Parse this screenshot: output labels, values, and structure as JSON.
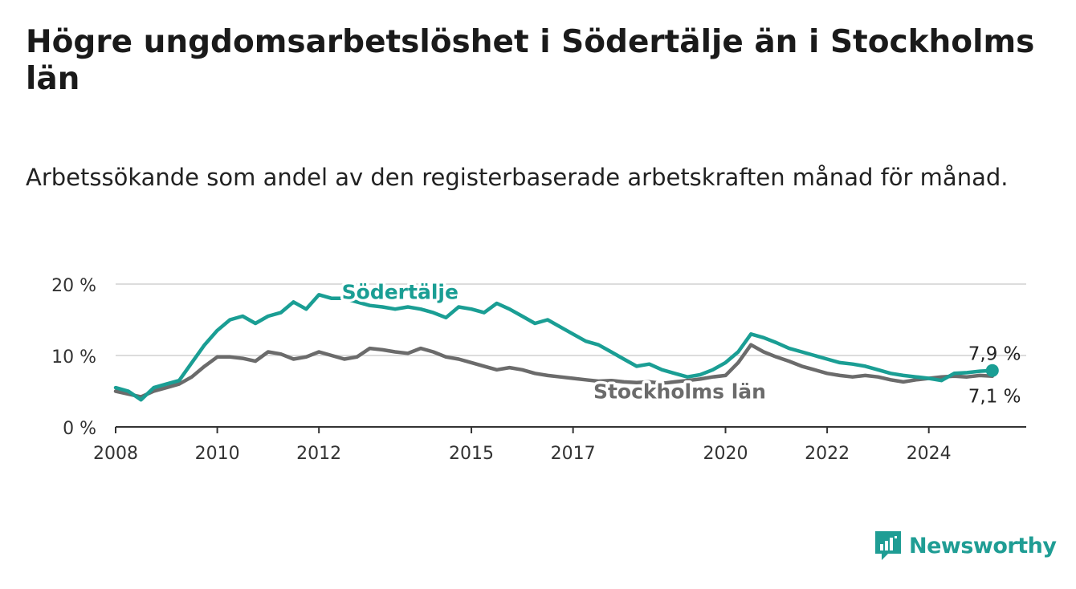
{
  "title": "Högre ungdomsarbetslöshet i Södertälje än i Stockholms län",
  "subtitle": "Arbetssökande som andel av den registerbaserade arbetskraften månad för månad.",
  "brand": {
    "name": "Newsworthy",
    "icon": "chart-bubble-icon",
    "color": "#1f9d94"
  },
  "chart_data": {
    "type": "line",
    "x_ticks": [
      "2008",
      "2010",
      "2012",
      "2015",
      "2017",
      "2020",
      "2022",
      "2024"
    ],
    "y_ticks": [
      "0 %",
      "10 %",
      "20 %"
    ],
    "ylim": [
      0,
      20
    ],
    "grid": true,
    "x_range": [
      "2008-01",
      "2025-12"
    ],
    "series": [
      {
        "name": "Södertälje",
        "color": "#1a9e94",
        "end_label": "7,9 %",
        "points": [
          [
            "2008-01",
            5.5
          ],
          [
            "2008-04",
            5.0
          ],
          [
            "2008-07",
            3.8
          ],
          [
            "2008-10",
            5.5
          ],
          [
            "2009-01",
            6.0
          ],
          [
            "2009-04",
            6.5
          ],
          [
            "2009-07",
            9.0
          ],
          [
            "2009-10",
            11.5
          ],
          [
            "2010-01",
            13.5
          ],
          [
            "2010-04",
            15.0
          ],
          [
            "2010-07",
            15.5
          ],
          [
            "2010-10",
            14.5
          ],
          [
            "2011-01",
            15.5
          ],
          [
            "2011-04",
            16.0
          ],
          [
            "2011-07",
            17.5
          ],
          [
            "2011-10",
            16.5
          ],
          [
            "2012-01",
            18.5
          ],
          [
            "2012-04",
            18.0
          ],
          [
            "2012-07",
            18.0
          ],
          [
            "2012-10",
            17.5
          ],
          [
            "2013-01",
            17.0
          ],
          [
            "2013-04",
            16.8
          ],
          [
            "2013-07",
            16.5
          ],
          [
            "2013-10",
            16.8
          ],
          [
            "2014-01",
            16.5
          ],
          [
            "2014-04",
            16.0
          ],
          [
            "2014-07",
            15.3
          ],
          [
            "2014-10",
            16.8
          ],
          [
            "2015-01",
            16.5
          ],
          [
            "2015-04",
            16.0
          ],
          [
            "2015-07",
            17.3
          ],
          [
            "2015-10",
            16.5
          ],
          [
            "2016-01",
            15.5
          ],
          [
            "2016-04",
            14.5
          ],
          [
            "2016-07",
            15.0
          ],
          [
            "2016-10",
            14.0
          ],
          [
            "2017-01",
            13.0
          ],
          [
            "2017-04",
            12.0
          ],
          [
            "2017-07",
            11.5
          ],
          [
            "2017-10",
            10.5
          ],
          [
            "2018-01",
            9.5
          ],
          [
            "2018-04",
            8.5
          ],
          [
            "2018-07",
            8.8
          ],
          [
            "2018-10",
            8.0
          ],
          [
            "2019-01",
            7.5
          ],
          [
            "2019-04",
            7.0
          ],
          [
            "2019-07",
            7.3
          ],
          [
            "2019-10",
            8.0
          ],
          [
            "2020-01",
            9.0
          ],
          [
            "2020-04",
            10.5
          ],
          [
            "2020-07",
            13.0
          ],
          [
            "2020-10",
            12.5
          ],
          [
            "2021-01",
            11.8
          ],
          [
            "2021-04",
            11.0
          ],
          [
            "2021-07",
            10.5
          ],
          [
            "2021-10",
            10.0
          ],
          [
            "2022-01",
            9.5
          ],
          [
            "2022-04",
            9.0
          ],
          [
            "2022-07",
            8.8
          ],
          [
            "2022-10",
            8.5
          ],
          [
            "2023-01",
            8.0
          ],
          [
            "2023-04",
            7.5
          ],
          [
            "2023-07",
            7.2
          ],
          [
            "2023-10",
            7.0
          ],
          [
            "2024-01",
            6.8
          ],
          [
            "2024-04",
            6.5
          ],
          [
            "2024-07",
            7.5
          ],
          [
            "2024-10",
            7.6
          ],
          [
            "2025-01",
            7.8
          ],
          [
            "2025-04",
            7.9
          ]
        ]
      },
      {
        "name": "Stockholms län",
        "color": "#6b6b6b",
        "end_label": "7,1 %",
        "points": [
          [
            "2008-01",
            5.0
          ],
          [
            "2008-04",
            4.6
          ],
          [
            "2008-07",
            4.2
          ],
          [
            "2008-10",
            5.0
          ],
          [
            "2009-01",
            5.5
          ],
          [
            "2009-04",
            6.0
          ],
          [
            "2009-07",
            7.0
          ],
          [
            "2009-10",
            8.5
          ],
          [
            "2010-01",
            9.8
          ],
          [
            "2010-04",
            9.8
          ],
          [
            "2010-07",
            9.6
          ],
          [
            "2010-10",
            9.2
          ],
          [
            "2011-01",
            10.5
          ],
          [
            "2011-04",
            10.2
          ],
          [
            "2011-07",
            9.5
          ],
          [
            "2011-10",
            9.8
          ],
          [
            "2012-01",
            10.5
          ],
          [
            "2012-04",
            10.0
          ],
          [
            "2012-07",
            9.5
          ],
          [
            "2012-10",
            9.8
          ],
          [
            "2013-01",
            11.0
          ],
          [
            "2013-04",
            10.8
          ],
          [
            "2013-07",
            10.5
          ],
          [
            "2013-10",
            10.3
          ],
          [
            "2014-01",
            11.0
          ],
          [
            "2014-04",
            10.5
          ],
          [
            "2014-07",
            9.8
          ],
          [
            "2014-10",
            9.5
          ],
          [
            "2015-01",
            9.0
          ],
          [
            "2015-04",
            8.5
          ],
          [
            "2015-07",
            8.0
          ],
          [
            "2015-10",
            8.3
          ],
          [
            "2016-01",
            8.0
          ],
          [
            "2016-04",
            7.5
          ],
          [
            "2016-07",
            7.2
          ],
          [
            "2016-10",
            7.0
          ],
          [
            "2017-01",
            6.8
          ],
          [
            "2017-04",
            6.6
          ],
          [
            "2017-07",
            6.4
          ],
          [
            "2017-10",
            6.5
          ],
          [
            "2018-01",
            6.3
          ],
          [
            "2018-04",
            6.2
          ],
          [
            "2018-07",
            6.3
          ],
          [
            "2018-10",
            6.1
          ],
          [
            "2019-01",
            6.3
          ],
          [
            "2019-04",
            6.5
          ],
          [
            "2019-07",
            6.7
          ],
          [
            "2019-10",
            7.0
          ],
          [
            "2020-01",
            7.2
          ],
          [
            "2020-04",
            9.0
          ],
          [
            "2020-07",
            11.5
          ],
          [
            "2020-10",
            10.5
          ],
          [
            "2021-01",
            9.8
          ],
          [
            "2021-04",
            9.2
          ],
          [
            "2021-07",
            8.5
          ],
          [
            "2021-10",
            8.0
          ],
          [
            "2022-01",
            7.5
          ],
          [
            "2022-04",
            7.2
          ],
          [
            "2022-07",
            7.0
          ],
          [
            "2022-10",
            7.2
          ],
          [
            "2023-01",
            7.0
          ],
          [
            "2023-04",
            6.6
          ],
          [
            "2023-07",
            6.3
          ],
          [
            "2023-10",
            6.6
          ],
          [
            "2024-01",
            6.8
          ],
          [
            "2024-04",
            7.0
          ],
          [
            "2024-07",
            7.1
          ],
          [
            "2024-10",
            7.0
          ],
          [
            "2025-01",
            7.2
          ],
          [
            "2025-04",
            7.1
          ]
        ]
      }
    ]
  }
}
